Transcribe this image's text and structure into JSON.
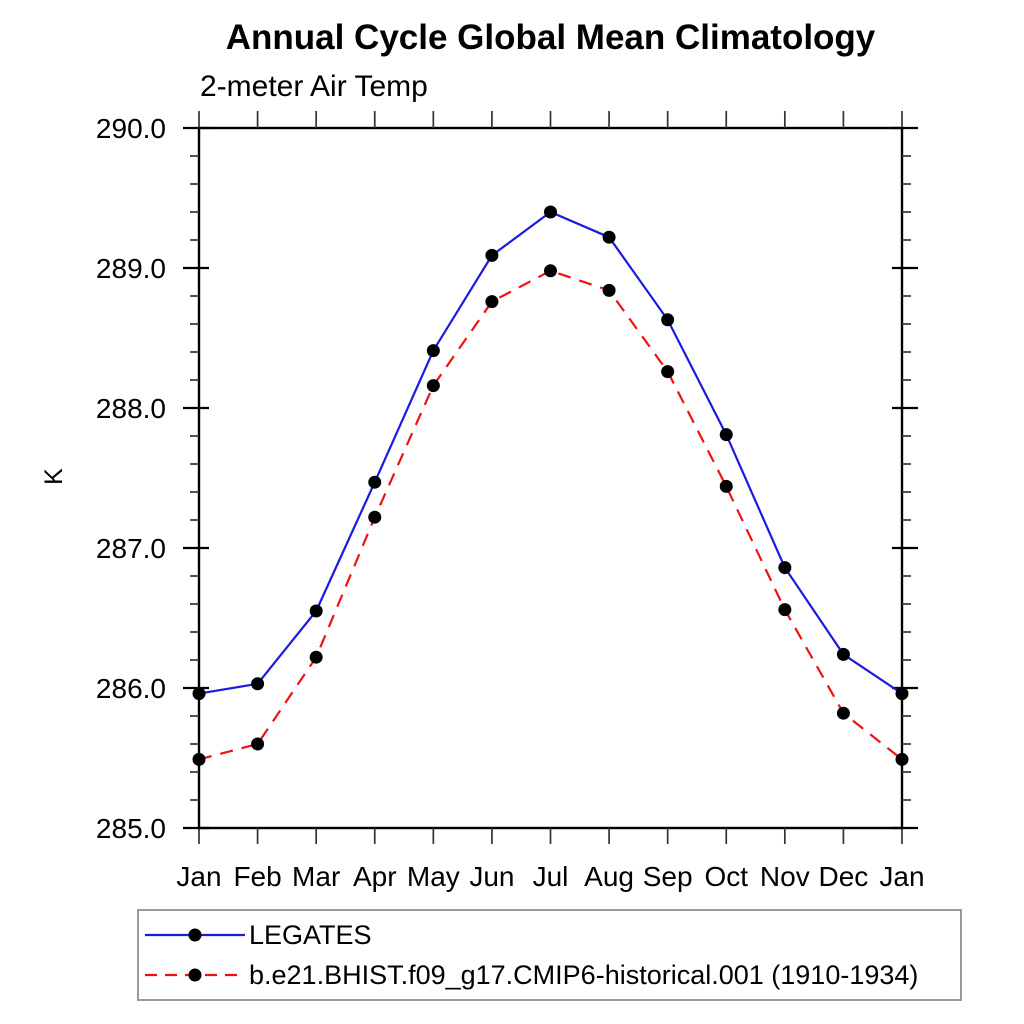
{
  "header": {
    "title": "Annual Cycle Global Mean Climatology",
    "subtitle": "2-meter Air Temp"
  },
  "chart_data": {
    "type": "line",
    "title": "Annual Cycle Global Mean Climatology",
    "subtitle": "2-meter Air Temp",
    "xlabel": "",
    "ylabel": "K",
    "categories": [
      "Jan",
      "Feb",
      "Mar",
      "Apr",
      "May",
      "Jun",
      "Jul",
      "Aug",
      "Sep",
      "Oct",
      "Nov",
      "Dec",
      "Jan"
    ],
    "series": [
      {
        "name": "LEGATES",
        "color": "#1a1ae0",
        "line_style": "solid",
        "values": [
          285.96,
          286.03,
          286.55,
          287.47,
          288.41,
          289.09,
          289.4,
          289.22,
          288.63,
          287.81,
          286.86,
          286.24,
          285.96
        ]
      },
      {
        "name": "b.e21.BHIST.f09_g17.CMIP6-historical.001 (1910-1934)",
        "color": "#f01212",
        "line_style": "dashed",
        "values": [
          285.49,
          285.6,
          286.22,
          287.22,
          288.16,
          288.76,
          288.98,
          288.84,
          288.26,
          287.44,
          286.56,
          285.82,
          285.49
        ]
      }
    ],
    "marker": {
      "shape": "circle",
      "color": "#000000"
    },
    "ylim": [
      285.0,
      290.0
    ],
    "yticks": [
      285,
      286,
      287,
      288,
      289,
      290
    ],
    "ytick_labels": [
      "285.0",
      "286.0",
      "287.0",
      "288.0",
      "289.0",
      "290.0"
    ],
    "ytick_minor_step": 0.2,
    "grid": false,
    "legend_position": "bottom-left",
    "frame_color": "#000000",
    "background": "#ffffff"
  }
}
